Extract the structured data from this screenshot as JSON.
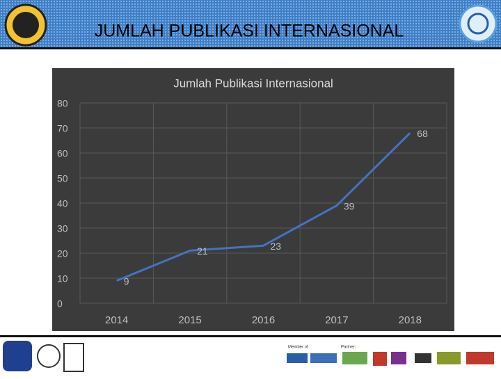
{
  "header": {
    "title": "JUMLAH PUBLIKASI INTERNASIONAL"
  },
  "chart_data": {
    "type": "line",
    "title": "Jumlah Publikasi Internasional",
    "categories": [
      "2014",
      "2015",
      "2016",
      "2017",
      "2018"
    ],
    "values": [
      9,
      21,
      23,
      39,
      68
    ],
    "color": "#4472c4",
    "ylim": [
      0,
      80
    ],
    "yticks": [
      0,
      10,
      20,
      30,
      40,
      50,
      60,
      70,
      80
    ],
    "grid": true
  },
  "footer": {
    "member_label": "Member of",
    "partner_label": "Partner:"
  }
}
